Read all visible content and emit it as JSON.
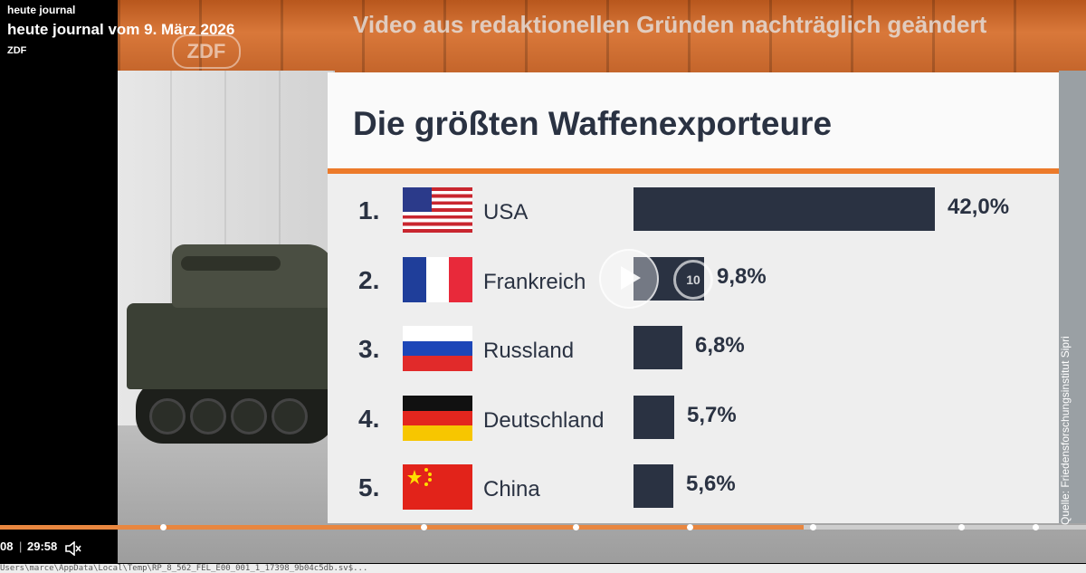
{
  "left_panel": {
    "show_small": "heute journal",
    "show_big": "heute journal vom 9. März 2026",
    "brand": "ZDF"
  },
  "video": {
    "overlay_title": "Video aus redaktionellen Gründen nachträglich geändert",
    "logo_text": "ZDF",
    "skip_label": "10"
  },
  "infographic": {
    "title": "Die größten Waffenexporteure",
    "source": "Quelle: Friedensforschungsinstitut Sipri",
    "accent_color": "#ec7a2a",
    "bar_color": "#2a3242"
  },
  "chart_data": {
    "type": "bar",
    "title": "Die größten Waffenexporteure",
    "categories": [
      "USA",
      "Frankreich",
      "Russland",
      "Deutschland",
      "China"
    ],
    "ranks": [
      "1.",
      "2.",
      "3.",
      "4.",
      "5."
    ],
    "values": [
      42.0,
      9.8,
      6.8,
      5.7,
      5.6
    ],
    "value_labels": [
      "42,0%",
      "9,8%",
      "6,8%",
      "5,7%",
      "5,6%"
    ],
    "flag_icons": [
      "usa-flag-icon",
      "france-flag-icon",
      "russia-flag-icon",
      "germany-flag-icon",
      "china-flag-icon"
    ]
  },
  "player": {
    "current_time": "08",
    "separator": "|",
    "duration": "29:58",
    "progress_fraction": 0.74,
    "chapter_fractions": [
      0.15,
      0.39,
      0.53,
      0.635,
      0.748,
      0.885,
      0.953
    ]
  },
  "status_path": "Users\\marce\\AppData\\Local\\Temp\\RP_8_562_FEL_E00_001_1_17398_9b04c5db.sv$..."
}
